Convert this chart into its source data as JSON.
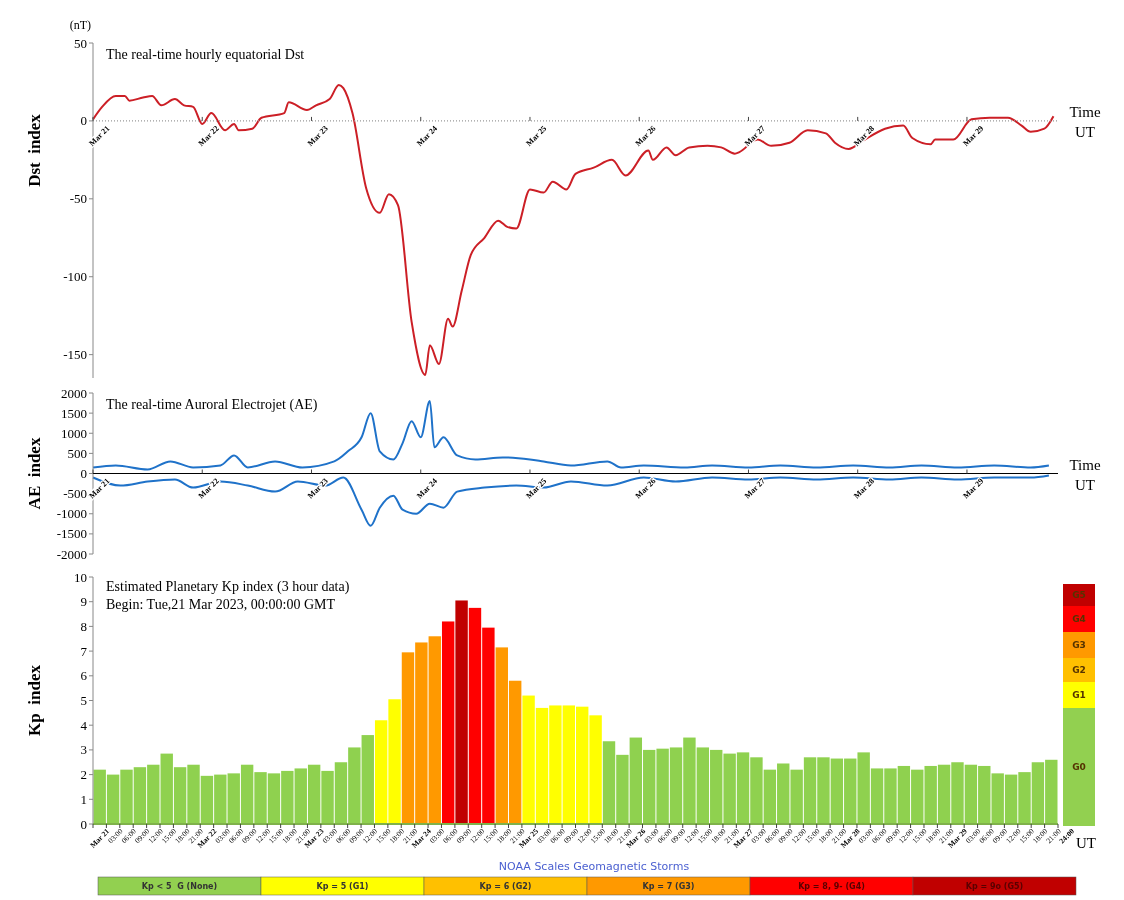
{
  "chart_data": [
    {
      "type": "line",
      "title": "The real-time hourly equatorial Dst",
      "xlabel": "Time UT",
      "ylabel": "Dst  index",
      "annotations": [
        "(nT)"
      ],
      "xlim": [
        "2023-03-21T00:00",
        "2023-03-29T20:00"
      ],
      "ylim": [
        -165,
        50
      ],
      "yticks": [
        50,
        0,
        -50,
        -100,
        -150
      ],
      "xticks": [
        {
          "value": "2023-03-21",
          "label": "Mar 21"
        },
        {
          "value": "2023-03-22",
          "label": "Mar 22"
        },
        {
          "value": "2023-03-23",
          "label": "Mar 23"
        },
        {
          "value": "2023-03-24",
          "label": "Mar 24"
        },
        {
          "value": "2023-03-25",
          "label": "Mar 25"
        },
        {
          "value": "2023-03-26",
          "label": "Mar 26"
        },
        {
          "value": "2023-03-27",
          "label": "Mar 27"
        },
        {
          "value": "2023-03-28",
          "label": "Mar 28"
        },
        {
          "value": "2023-03-29",
          "label": "Mar 29"
        }
      ],
      "series": [
        {
          "color": "#cc1f26",
          "x": [
            "2023-03-21T00:00",
            "2023-03-21T02:00",
            "2023-03-21T05:00",
            "2023-03-21T07:00",
            "2023-03-21T08:00",
            "2023-03-21T11:00",
            "2023-03-21T13:00",
            "2023-03-21T15:00",
            "2023-03-21T18:00",
            "2023-03-21T20:00",
            "2023-03-21T22:00",
            "2023-03-22T00:00",
            "2023-03-22T02:00",
            "2023-03-22T05:00",
            "2023-03-22T07:00",
            "2023-03-22T08:00",
            "2023-03-22T11:00",
            "2023-03-22T13:00",
            "2023-03-22T18:00",
            "2023-03-22T19:00",
            "2023-03-22T23:00",
            "2023-03-23T01:00",
            "2023-03-23T04:00",
            "2023-03-23T06:00",
            "2023-03-23T07:00",
            "2023-03-23T09:00",
            "2023-03-23T12:00",
            "2023-03-23T15:00",
            "2023-03-23T17:00",
            "2023-03-23T19:00",
            "2023-03-23T22:00",
            "2023-03-24T01:00",
            "2023-03-24T02:00",
            "2023-03-24T04:00",
            "2023-03-24T06:00",
            "2023-03-24T07:00",
            "2023-03-24T09:00",
            "2023-03-24T11:00",
            "2023-03-24T14:00",
            "2023-03-24T17:00",
            "2023-03-24T19:00",
            "2023-03-24T21:00",
            "2023-03-25T00:00",
            "2023-03-25T03:00",
            "2023-03-25T05:00",
            "2023-03-25T08:00",
            "2023-03-25T10:00",
            "2023-03-25T14:00",
            "2023-03-25T18:00",
            "2023-03-25T21:00",
            "2023-03-26T02:00",
            "2023-03-26T03:00",
            "2023-03-26T06:00",
            "2023-03-26T08:00",
            "2023-03-26T11:00",
            "2023-03-26T15:00",
            "2023-03-26T18:00",
            "2023-03-26T21:00",
            "2023-03-26T22:00",
            "2023-03-27T02:00",
            "2023-03-27T05:00",
            "2023-03-27T09:00",
            "2023-03-27T13:00",
            "2023-03-27T17:00",
            "2023-03-27T19:00",
            "2023-03-27T22:00",
            "2023-03-28T01:00",
            "2023-03-28T06:00",
            "2023-03-28T10:00",
            "2023-03-28T12:00",
            "2023-03-28T16:00",
            "2023-03-28T17:00",
            "2023-03-28T21:00",
            "2023-03-29T01:00",
            "2023-03-29T05:00",
            "2023-03-29T09:00",
            "2023-03-29T12:00",
            "2023-03-29T14:00",
            "2023-03-29T17:00",
            "2023-03-29T19:00"
          ],
          "values": [
            1,
            9,
            16,
            16,
            13,
            15,
            16,
            10,
            14,
            10,
            9,
            -2,
            5,
            -6,
            -2,
            -6,
            -5,
            2,
            5,
            12,
            7,
            10,
            14,
            23,
            21,
            5,
            -43,
            -59,
            -47,
            -54,
            -129,
            -163,
            -144,
            -156,
            -127,
            -132,
            -109,
            -86,
            -75,
            -64,
            -68,
            -69,
            -44,
            -46,
            -39,
            -44,
            -34,
            -30,
            -25,
            -35,
            -19,
            -25,
            -17,
            -22,
            -17,
            -16,
            -17,
            -21,
            -20,
            -12,
            -16,
            -14,
            -6,
            -8,
            -14,
            -18,
            -13,
            -5,
            -3,
            -11,
            -15,
            -12,
            -12,
            1,
            2,
            2,
            -3,
            -7,
            -5,
            3
          ]
        }
      ]
    },
    {
      "type": "line",
      "title": "The real-time Auroral Electrojet (AE)",
      "xlabel": "Time UT",
      "ylabel": "AE  index",
      "xlim": [
        "2023-03-21T00:00",
        "2023-03-29T20:00"
      ],
      "ylim": [
        -2000,
        2000
      ],
      "yticks": [
        2000,
        1500,
        1000,
        500,
        0,
        -500,
        -1000,
        -1500,
        -2000
      ],
      "xticks": [
        {
          "value": "2023-03-21",
          "label": "Mar 21"
        },
        {
          "value": "2023-03-22",
          "label": "Mar 22"
        },
        {
          "value": "2023-03-23",
          "label": "Mar 23"
        },
        {
          "value": "2023-03-24",
          "label": "Mar 24"
        },
        {
          "value": "2023-03-25",
          "label": "Mar 25"
        },
        {
          "value": "2023-03-26",
          "label": "Mar 26"
        },
        {
          "value": "2023-03-27",
          "label": "Mar 27"
        },
        {
          "value": "2023-03-28",
          "label": "Mar 28"
        },
        {
          "value": "2023-03-29",
          "label": "Mar 29"
        }
      ],
      "series": [
        {
          "color": "#1f72c9",
          "x": [
            "2023-03-21T00:00",
            "2023-03-21T05:00",
            "2023-03-21T12:00",
            "2023-03-21T17:00",
            "2023-03-21T22:00",
            "2023-03-22T04:00",
            "2023-03-22T07:00",
            "2023-03-22T10:00",
            "2023-03-22T16:00",
            "2023-03-22T22:00",
            "2023-03-23T05:00",
            "2023-03-23T08:00",
            "2023-03-23T11:00",
            "2023-03-23T13:00",
            "2023-03-23T15:00",
            "2023-03-23T18:00",
            "2023-03-23T20:00",
            "2023-03-23T22:00",
            "2023-03-24T00:00",
            "2023-03-24T02:00",
            "2023-03-24T03:00",
            "2023-03-24T05:00",
            "2023-03-24T08:00",
            "2023-03-24T12:00",
            "2023-03-24T18:00",
            "2023-03-25T00:00",
            "2023-03-25T03:00",
            "2023-03-25T09:00",
            "2023-03-25T17:00",
            "2023-03-25T20:00",
            "2023-03-26T01:00",
            "2023-03-26T10:00",
            "2023-03-26T16:00",
            "2023-03-27T00:00",
            "2023-03-27T07:00",
            "2023-03-27T15:00",
            "2023-03-27T23:00",
            "2023-03-28T07:00",
            "2023-03-28T14:00",
            "2023-03-28T22:00",
            "2023-03-29T06:00",
            "2023-03-29T14:00",
            "2023-03-29T18:00"
          ],
          "values": [
            150,
            200,
            100,
            300,
            150,
            200,
            450,
            150,
            300,
            150,
            300,
            550,
            900,
            1500,
            550,
            350,
            750,
            1300,
            900,
            1800,
            650,
            900,
            450,
            350,
            400,
            350,
            300,
            200,
            300,
            150,
            200,
            150,
            200,
            150,
            200,
            150,
            200,
            150,
            200,
            150,
            200,
            150,
            200
          ]
        },
        {
          "color": "#1f72c9",
          "x": [
            "2023-03-21T00:00",
            "2023-03-21T06:00",
            "2023-03-21T12:00",
            "2023-03-21T18:00",
            "2023-03-21T22:00",
            "2023-03-22T04:00",
            "2023-03-22T10:00",
            "2023-03-22T16:00",
            "2023-03-22T21:00",
            "2023-03-23T03:00",
            "2023-03-23T07:00",
            "2023-03-23T11:00",
            "2023-03-23T13:00",
            "2023-03-23T15:00",
            "2023-03-23T18:00",
            "2023-03-23T20:00",
            "2023-03-23T23:00",
            "2023-03-24T02:00",
            "2023-03-24T05:00",
            "2023-03-24T08:00",
            "2023-03-24T14:00",
            "2023-03-24T21:00",
            "2023-03-25T03:00",
            "2023-03-25T09:00",
            "2023-03-25T17:00",
            "2023-03-26T01:00",
            "2023-03-26T08:00",
            "2023-03-26T16:00",
            "2023-03-27T00:00",
            "2023-03-27T07:00",
            "2023-03-27T15:00",
            "2023-03-27T23:00",
            "2023-03-28T07:00",
            "2023-03-28T14:00",
            "2023-03-28T22:00",
            "2023-03-29T06:00",
            "2023-03-29T14:00",
            "2023-03-29T18:00"
          ],
          "values": [
            -100,
            -300,
            -200,
            -150,
            -350,
            -200,
            -300,
            -450,
            -200,
            -300,
            -100,
            -900,
            -1300,
            -850,
            -550,
            -900,
            -1000,
            -750,
            -850,
            -450,
            -350,
            -300,
            -350,
            -200,
            -300,
            -100,
            -200,
            -100,
            -150,
            -100,
            -150,
            -100,
            -150,
            -100,
            -150,
            -100,
            -100,
            -50
          ]
        }
      ]
    },
    {
      "type": "bar",
      "title": "Estimated Planetary Kp index (3 hour data)",
      "subtitle": "Begin: Tue,21 Mar 2023, 00:00:00 GMT",
      "xlabel": "UT",
      "ylabel": "Kp  index",
      "annotations": [
        "G5",
        "G4",
        "G3",
        "G2",
        "G1",
        "G0",
        "NOAA Scales Geomagnetic Storms",
        "Kp < 5  G (None)",
        "Kp = 5 (G1)",
        "Kp = 6 (G2)",
        "Kp = 7 (G3)",
        "Kp = 8, 9- (G4)",
        "Kp = 9o (G5)"
      ],
      "xlim": [
        "2023-03-21T00:00",
        "2023-03-30T00:00"
      ],
      "ylim": [
        0,
        10
      ],
      "yticks": [
        0,
        1,
        2,
        3,
        4,
        5,
        6,
        7,
        8,
        9,
        10
      ],
      "xticks": [
        {
          "value": "2023-03-21T00:00",
          "label": "Mar 21"
        },
        {
          "value": "2023-03-21T03:00",
          "label": "03:00"
        },
        {
          "value": "2023-03-21T06:00",
          "label": "06:00"
        },
        {
          "value": "2023-03-21T09:00",
          "label": "09:00"
        },
        {
          "value": "2023-03-21T12:00",
          "label": "12:00"
        },
        {
          "value": "2023-03-21T15:00",
          "label": "15:00"
        },
        {
          "value": "2023-03-21T18:00",
          "label": "18:00"
        },
        {
          "value": "2023-03-21T21:00",
          "label": "21:00"
        },
        {
          "value": "2023-03-22T00:00",
          "label": "Mar 22"
        },
        {
          "value": "2023-03-22T03:00",
          "label": "03:00"
        },
        {
          "value": "2023-03-22T06:00",
          "label": "06:00"
        },
        {
          "value": "2023-03-22T09:00",
          "label": "09:00"
        },
        {
          "value": "2023-03-22T12:00",
          "label": "12:00"
        },
        {
          "value": "2023-03-22T15:00",
          "label": "15:00"
        },
        {
          "value": "2023-03-22T18:00",
          "label": "18:00"
        },
        {
          "value": "2023-03-22T21:00",
          "label": "21:00"
        },
        {
          "value": "2023-03-23T00:00",
          "label": "Mar 23"
        },
        {
          "value": "2023-03-23T03:00",
          "label": "03:00"
        },
        {
          "value": "2023-03-23T06:00",
          "label": "06:00"
        },
        {
          "value": "2023-03-23T09:00",
          "label": "09:00"
        },
        {
          "value": "2023-03-23T12:00",
          "label": "12:00"
        },
        {
          "value": "2023-03-23T15:00",
          "label": "15:00"
        },
        {
          "value": "2023-03-23T18:00",
          "label": "18:00"
        },
        {
          "value": "2023-03-23T21:00",
          "label": "21:00"
        },
        {
          "value": "2023-03-24T00:00",
          "label": "Mar 24"
        },
        {
          "value": "2023-03-24T03:00",
          "label": "03:00"
        },
        {
          "value": "2023-03-24T06:00",
          "label": "06:00"
        },
        {
          "value": "2023-03-24T09:00",
          "label": "09:00"
        },
        {
          "value": "2023-03-24T12:00",
          "label": "12:00"
        },
        {
          "value": "2023-03-24T15:00",
          "label": "15:00"
        },
        {
          "value": "2023-03-24T18:00",
          "label": "18:00"
        },
        {
          "value": "2023-03-24T21:00",
          "label": "21:00"
        },
        {
          "value": "2023-03-25T00:00",
          "label": "Mar 25"
        },
        {
          "value": "2023-03-25T03:00",
          "label": "03:00"
        },
        {
          "value": "2023-03-25T06:00",
          "label": "06:00"
        },
        {
          "value": "2023-03-25T09:00",
          "label": "09:00"
        },
        {
          "value": "2023-03-25T12:00",
          "label": "12:00"
        },
        {
          "value": "2023-03-25T15:00",
          "label": "15:00"
        },
        {
          "value": "2023-03-25T18:00",
          "label": "18:00"
        },
        {
          "value": "2023-03-25T21:00",
          "label": "21:00"
        },
        {
          "value": "2023-03-26T00:00",
          "label": "Mar 26"
        },
        {
          "value": "2023-03-26T03:00",
          "label": "03:00"
        },
        {
          "value": "2023-03-26T06:00",
          "label": "06:00"
        },
        {
          "value": "2023-03-26T09:00",
          "label": "09:00"
        },
        {
          "value": "2023-03-26T12:00",
          "label": "12:00"
        },
        {
          "value": "2023-03-26T15:00",
          "label": "15:00"
        },
        {
          "value": "2023-03-26T18:00",
          "label": "18:00"
        },
        {
          "value": "2023-03-26T21:00",
          "label": "21:00"
        },
        {
          "value": "2023-03-27T00:00",
          "label": "Mar 27"
        },
        {
          "value": "2023-03-27T03:00",
          "label": "03:00"
        },
        {
          "value": "2023-03-27T06:00",
          "label": "06:00"
        },
        {
          "value": "2023-03-27T09:00",
          "label": "09:00"
        },
        {
          "value": "2023-03-27T12:00",
          "label": "12:00"
        },
        {
          "value": "2023-03-27T15:00",
          "label": "15:00"
        },
        {
          "value": "2023-03-27T18:00",
          "label": "18:00"
        },
        {
          "value": "2023-03-27T21:00",
          "label": "21:00"
        },
        {
          "value": "2023-03-28T00:00",
          "label": "Mar 28"
        },
        {
          "value": "2023-03-28T03:00",
          "label": "03:00"
        },
        {
          "value": "2023-03-28T06:00",
          "label": "06:00"
        },
        {
          "value": "2023-03-28T09:00",
          "label": "09:00"
        },
        {
          "value": "2023-03-28T12:00",
          "label": "12:00"
        },
        {
          "value": "2023-03-28T15:00",
          "label": "15:00"
        },
        {
          "value": "2023-03-28T18:00",
          "label": "18:00"
        },
        {
          "value": "2023-03-28T21:00",
          "label": "21:00"
        },
        {
          "value": "2023-03-29T00:00",
          "label": "Mar 29"
        },
        {
          "value": "2023-03-29T03:00",
          "label": "03:00"
        },
        {
          "value": "2023-03-29T06:00",
          "label": "06:00"
        },
        {
          "value": "2023-03-29T09:00",
          "label": "09:00"
        },
        {
          "value": "2023-03-29T12:00",
          "label": "12:00"
        },
        {
          "value": "2023-03-29T15:00",
          "label": "15:00"
        },
        {
          "value": "2023-03-29T18:00",
          "label": "18:00"
        },
        {
          "value": "2023-03-29T21:00",
          "label": "21:00"
        },
        {
          "value": "2023-03-30T00:00",
          "label": "24:00"
        }
      ],
      "x": [
        "2023-03-21T01:30",
        "2023-03-21T04:30",
        "2023-03-21T07:30",
        "2023-03-21T10:30",
        "2023-03-21T13:30",
        "2023-03-21T16:30",
        "2023-03-21T19:30",
        "2023-03-21T22:30",
        "2023-03-22T01:30",
        "2023-03-22T04:30",
        "2023-03-22T07:30",
        "2023-03-22T10:30",
        "2023-03-22T13:30",
        "2023-03-22T16:30",
        "2023-03-22T19:30",
        "2023-03-22T22:30",
        "2023-03-23T01:30",
        "2023-03-23T04:30",
        "2023-03-23T07:30",
        "2023-03-23T10:30",
        "2023-03-23T13:30",
        "2023-03-23T16:30",
        "2023-03-23T19:30",
        "2023-03-23T22:30",
        "2023-03-24T01:30",
        "2023-03-24T04:30",
        "2023-03-24T07:30",
        "2023-03-24T10:30",
        "2023-03-24T13:30",
        "2023-03-24T16:30",
        "2023-03-24T19:30",
        "2023-03-24T22:30",
        "2023-03-25T01:30",
        "2023-03-25T04:30",
        "2023-03-25T07:30",
        "2023-03-25T10:30",
        "2023-03-25T13:30",
        "2023-03-25T16:30",
        "2023-03-25T19:30",
        "2023-03-25T22:30",
        "2023-03-26T01:30",
        "2023-03-26T04:30",
        "2023-03-26T07:30",
        "2023-03-26T10:30",
        "2023-03-26T13:30",
        "2023-03-26T16:30",
        "2023-03-26T19:30",
        "2023-03-26T22:30",
        "2023-03-27T01:30",
        "2023-03-27T04:30",
        "2023-03-27T07:30",
        "2023-03-27T10:30",
        "2023-03-27T13:30",
        "2023-03-27T16:30",
        "2023-03-27T19:30",
        "2023-03-27T22:30",
        "2023-03-28T01:30",
        "2023-03-28T04:30",
        "2023-03-28T07:30",
        "2023-03-28T10:30",
        "2023-03-28T13:30",
        "2023-03-28T16:30",
        "2023-03-28T19:30",
        "2023-03-28T22:30",
        "2023-03-29T01:30",
        "2023-03-29T04:30",
        "2023-03-29T07:30",
        "2023-03-29T10:30",
        "2023-03-29T13:30",
        "2023-03-29T16:30",
        "2023-03-29T19:30",
        "2023-03-29T22:30"
      ],
      "values": [
        2.2,
        2.0,
        2.2,
        2.3,
        2.4,
        2.85,
        2.3,
        2.4,
        1.95,
        2.0,
        2.05,
        2.4,
        2.1,
        2.05,
        2.15,
        2.25,
        2.4,
        2.15,
        2.5,
        3.1,
        3.6,
        4.2,
        5.05,
        6.95,
        7.35,
        7.6,
        8.2,
        9.05,
        8.75,
        7.95,
        7.15,
        5.8,
        5.2,
        4.7,
        4.8,
        4.8,
        4.75,
        4.4,
        3.35,
        2.8,
        3.5,
        3.0,
        3.05,
        3.1,
        3.5,
        3.1,
        3.0,
        2.85,
        2.9,
        2.7,
        2.2,
        2.45,
        2.2,
        2.7,
        2.7,
        2.65,
        2.65,
        2.9,
        2.25,
        2.25,
        2.35,
        2.2,
        2.35,
        2.4,
        2.5,
        2.4,
        2.35,
        2.05,
        2.0,
        2.1,
        2.5,
        2.6
      ],
      "colors": [
        "#8fd14f",
        "#8fd14f",
        "#8fd14f",
        "#8fd14f",
        "#8fd14f",
        "#8fd14f",
        "#8fd14f",
        "#8fd14f",
        "#8fd14f",
        "#8fd14f",
        "#8fd14f",
        "#8fd14f",
        "#8fd14f",
        "#8fd14f",
        "#8fd14f",
        "#8fd14f",
        "#8fd14f",
        "#8fd14f",
        "#8fd14f",
        "#8fd14f",
        "#8fd14f",
        "#ffff00",
        "#ffff00",
        "#ff9900",
        "#ff9900",
        "#ff9900",
        "#ff0000",
        "#c00000",
        "#ff0000",
        "#ff0000",
        "#ff9900",
        "#ff9900",
        "#ffff00",
        "#ffff00",
        "#ffff00",
        "#ffff00",
        "#ffff00",
        "#ffff00",
        "#8fd14f",
        "#8fd14f",
        "#8fd14f",
        "#8fd14f",
        "#8fd14f",
        "#8fd14f",
        "#8fd14f",
        "#8fd14f",
        "#8fd14f",
        "#8fd14f",
        "#8fd14f",
        "#8fd14f",
        "#8fd14f",
        "#8fd14f",
        "#8fd14f",
        "#8fd14f",
        "#8fd14f",
        "#8fd14f",
        "#8fd14f",
        "#8fd14f",
        "#8fd14f",
        "#8fd14f",
        "#8fd14f",
        "#8fd14f",
        "#8fd14f",
        "#8fd14f",
        "#8fd14f",
        "#8fd14f",
        "#8fd14f",
        "#8fd14f",
        "#8fd14f",
        "#8fd14f",
        "#8fd14f",
        "#8fd14f"
      ]
    }
  ]
}
